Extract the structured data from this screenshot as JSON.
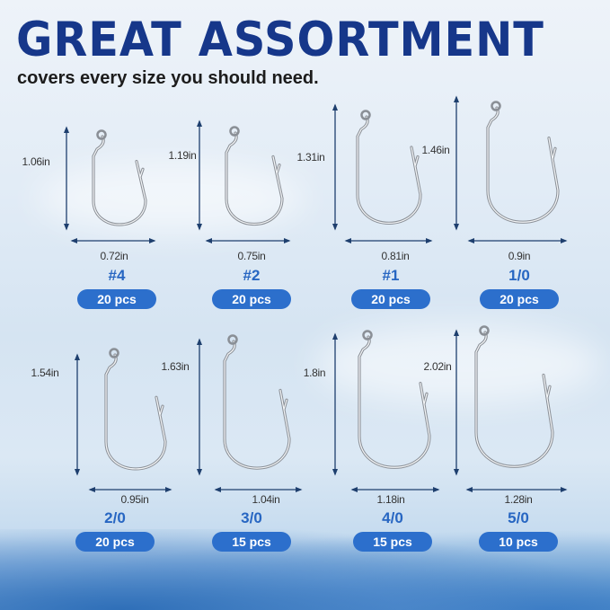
{
  "title": "GREAT ASSORTMENT",
  "subtitle": "covers every size you should need.",
  "colors": {
    "title": "#16378a",
    "size_label": "#2766c2",
    "pill": "#2c6fcc",
    "arrow": "#1e3f6e"
  },
  "hooks": [
    {
      "size": "#4",
      "height": "1.06in",
      "width": "0.72in",
      "count": "20 pcs"
    },
    {
      "size": "#2",
      "height": "1.19in",
      "width": "0.75in",
      "count": "20 pcs"
    },
    {
      "size": "#1",
      "height": "1.31in",
      "width": "0.81in",
      "count": "20 pcs"
    },
    {
      "size": "1/0",
      "height": "1.46in",
      "width": "0.9in",
      "count": "20 pcs"
    },
    {
      "size": "2/0",
      "height": "1.54in",
      "width": "0.95in",
      "count": "20 pcs"
    },
    {
      "size": "3/0",
      "height": "1.63in",
      "width": "1.04in",
      "count": "15 pcs"
    },
    {
      "size": "4/0",
      "height": "1.8in",
      "width": "1.18in",
      "count": "15 pcs"
    },
    {
      "size": "5/0",
      "height": "2.02in",
      "width": "1.28in",
      "count": "10 pcs"
    }
  ]
}
